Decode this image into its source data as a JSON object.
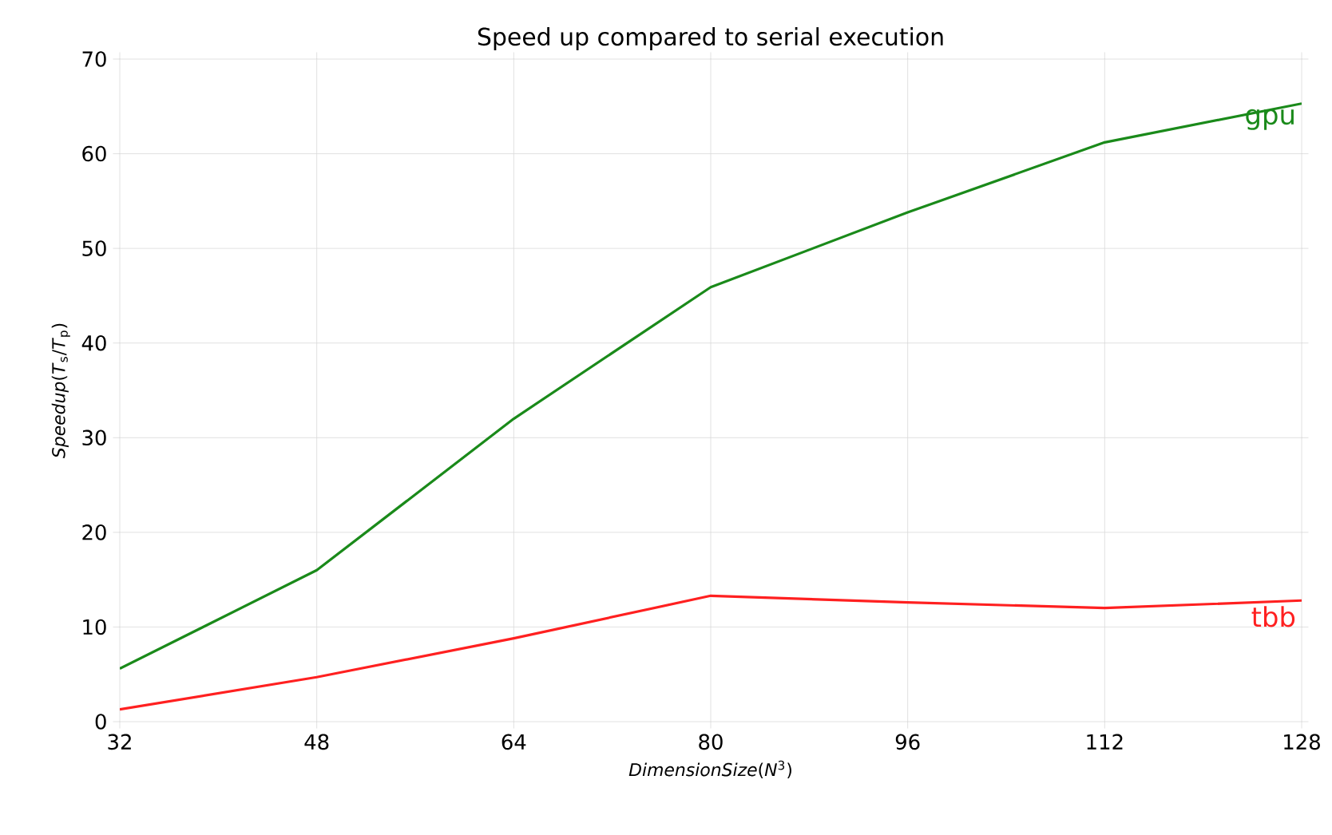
{
  "chart_data": {
    "type": "line",
    "title": "Speed up compared to serial execution",
    "xlabel": "*DimensionSize*(*N*$^{3}$)",
    "ylabel": "*Speedup*(*T*$_{s}$/*T*$_{p}$)",
    "x": [
      32,
      48,
      64,
      80,
      96,
      112,
      128
    ],
    "series": [
      {
        "name": "gpu",
        "color": "#1a8a1a",
        "values": [
          5.6,
          16.0,
          32.0,
          45.9,
          53.8,
          61.2,
          65.3
        ]
      },
      {
        "name": "tbb",
        "color": "#ff2020",
        "values": [
          1.3,
          4.7,
          8.8,
          13.3,
          12.6,
          12.0,
          12.8
        ]
      }
    ],
    "xlim": [
      32,
      128
    ],
    "ylim": [
      0,
      70
    ],
    "xticks": [
      32,
      48,
      64,
      80,
      96,
      112,
      128
    ],
    "yticks": [
      0,
      10,
      20,
      30,
      40,
      50,
      60,
      70
    ],
    "grid": true,
    "legend": false,
    "marker": "none",
    "line_style": "solid"
  }
}
